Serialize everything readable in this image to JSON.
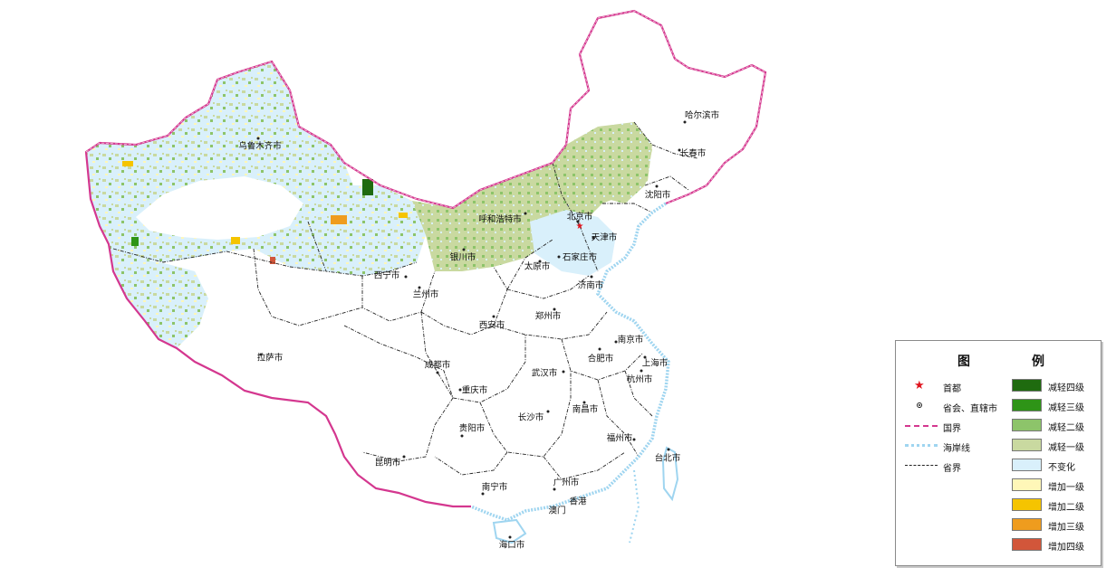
{
  "legend": {
    "title_left": "图",
    "title_right": "例",
    "symbols": [
      {
        "key": "capital",
        "label": "首都"
      },
      {
        "key": "provincial_capital",
        "label": "省会、直辖市"
      },
      {
        "key": "national_border",
        "label": "国界"
      },
      {
        "key": "coastline",
        "label": "海岸线"
      },
      {
        "key": "province_border",
        "label": "省界"
      }
    ],
    "classes": [
      {
        "label": "减轻四级",
        "color": "#1f6b0f"
      },
      {
        "label": "减轻三级",
        "color": "#2e9417"
      },
      {
        "label": "减轻二级",
        "color": "#8dc46a"
      },
      {
        "label": "减轻一级",
        "color": "#c9d9a0"
      },
      {
        "label": "不变化",
        "color": "#d9f0fb"
      },
      {
        "label": "增加一级",
        "color": "#fff7b8"
      },
      {
        "label": "增加二级",
        "color": "#f5c400"
      },
      {
        "label": "增加三级",
        "color": "#ef9c1e"
      },
      {
        "label": "增加四级",
        "color": "#d2563a"
      }
    ]
  },
  "colors": {
    "national_border": "#d4378f",
    "coastline": "#9fd5f0",
    "province_border": "#222222",
    "capital_star": "#e0141e"
  },
  "cities": [
    "乌鲁木齐市",
    "哈尔滨市",
    "长春市",
    "沈阳市",
    "呼和浩特市",
    "北京市",
    "天津市",
    "银川市",
    "太原市",
    "石家庄市",
    "西宁市",
    "兰州市",
    "济南市",
    "西安市",
    "郑州市",
    "南京市",
    "合肥市",
    "上海市",
    "拉萨市",
    "成都市",
    "武汉市",
    "杭州市",
    "重庆市",
    "长沙市",
    "南昌市",
    "贵阳市",
    "福州市",
    "台北市",
    "昆明市",
    "南宁市",
    "广州市",
    "香港",
    "澳门",
    "海口市"
  ]
}
